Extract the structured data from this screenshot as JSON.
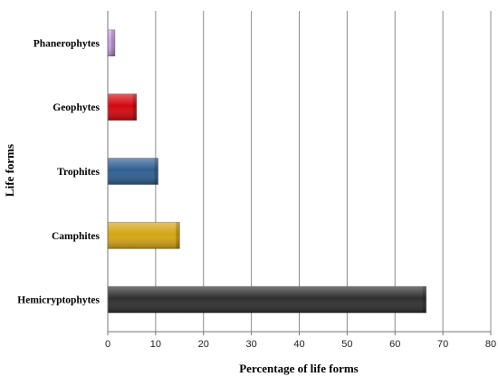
{
  "chart_data": {
    "type": "bar",
    "orientation": "horizontal",
    "title": "",
    "xlabel": "Percentage of life forms",
    "ylabel": "Life forms",
    "categories": [
      "Phanerophytes",
      "Geophytes",
      "Trophites",
      "Camphites",
      "Hemicryptophytes"
    ],
    "values": [
      1.5,
      6,
      10.5,
      15,
      66.5
    ],
    "colors": [
      "#c9a0e8",
      "#d4080e",
      "#2f5f91",
      "#d4a514",
      "#2f2f2f"
    ],
    "xlim": [
      0,
      80
    ],
    "xticks": [
      0,
      10,
      20,
      30,
      40,
      50,
      60,
      70,
      80
    ],
    "grid": "vertical",
    "legend": "none"
  }
}
